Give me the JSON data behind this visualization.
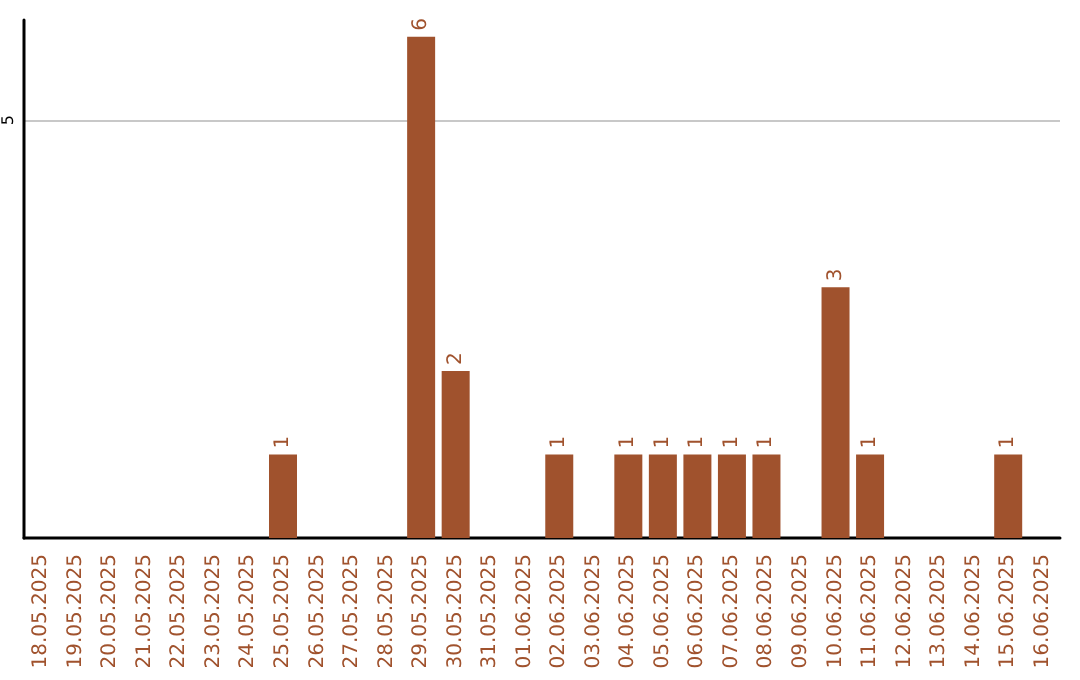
{
  "chart_data": {
    "type": "bar",
    "categories": [
      "18.05.2025",
      "19.05.2025",
      "20.05.2025",
      "21.05.2025",
      "22.05.2025",
      "23.05.2025",
      "24.05.2025",
      "25.05.2025",
      "26.05.2025",
      "27.05.2025",
      "28.05.2025",
      "29.05.2025",
      "30.05.2025",
      "31.05.2025",
      "01.06.2025",
      "02.06.2025",
      "03.06.2025",
      "04.06.2025",
      "05.06.2025",
      "06.06.2025",
      "07.06.2025",
      "08.06.2025",
      "09.06.2025",
      "10.06.2025",
      "11.06.2025",
      "12.06.2025",
      "13.06.2025",
      "14.06.2025",
      "15.06.2025",
      "16.06.2025"
    ],
    "values": [
      0,
      0,
      0,
      0,
      0,
      0,
      0,
      1,
      0,
      0,
      0,
      6,
      2,
      0,
      0,
      1,
      0,
      1,
      1,
      1,
      1,
      1,
      0,
      3,
      1,
      0,
      0,
      0,
      1,
      0
    ],
    "value_labels": [
      null,
      null,
      null,
      null,
      null,
      null,
      null,
      "1",
      null,
      null,
      null,
      "6",
      "2",
      null,
      null,
      "1",
      null,
      "1",
      "1",
      "1",
      "1",
      "1",
      null,
      "3",
      "1",
      null,
      null,
      null,
      "1",
      null
    ],
    "color": "#a0522d",
    "ylim": [
      0,
      6.2
    ],
    "yticks": [
      5
    ],
    "grid": "y"
  }
}
